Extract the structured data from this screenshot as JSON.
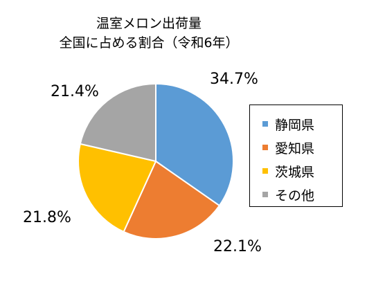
{
  "chart_data": {
    "type": "pie",
    "title": [
      "温室メロン出荷量",
      "全国に占める割合（令和6年）"
    ],
    "categories": [
      "静岡県",
      "愛知県",
      "茨城県",
      "その他"
    ],
    "values": [
      34.7,
      22.1,
      21.8,
      21.4
    ],
    "labels": [
      "34.7%",
      "22.1%",
      "21.8%",
      "21.4%"
    ],
    "colors": [
      "#5B9BD5",
      "#ED7D31",
      "#FFC000",
      "#A5A5A5"
    ],
    "start": "12 o'clock",
    "direction": "clockwise",
    "legend_position": "right"
  }
}
